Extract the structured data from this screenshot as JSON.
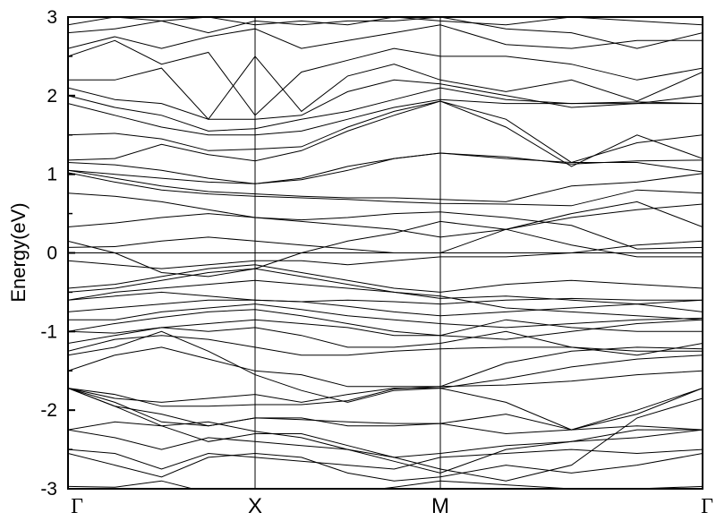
{
  "chart_data": {
    "type": "line",
    "title": "",
    "xlabel": "",
    "ylabel": "Energy(eV)",
    "ylim": [
      -3,
      3
    ],
    "yticks": [
      "3",
      "2",
      "1",
      "0",
      "-1",
      "-2",
      "-3"
    ],
    "ytick_values": [
      3,
      2,
      1,
      0,
      -1,
      -2,
      -3
    ],
    "y_minor_step": 0.5,
    "x_ticks": [
      "Γ",
      "X",
      "M",
      "Γ"
    ],
    "fermi_level": 0,
    "grid": false,
    "line_color": "#000000",
    "bands": [
      [
        -2.97,
        -2.98,
        -2.9,
        -3.05,
        -3.1,
        -3.1,
        -3.05,
        -2.98,
        -2.9,
        -2.95,
        -3.0,
        -3.0,
        -2.97
      ],
      [
        -2.55,
        -2.7,
        -2.85,
        -2.6,
        -2.55,
        -2.6,
        -2.8,
        -2.9,
        -2.85,
        -2.7,
        -2.8,
        -2.7,
        -2.55
      ],
      [
        -2.5,
        -2.55,
        -2.75,
        -2.55,
        -2.6,
        -2.65,
        -2.7,
        -2.75,
        -2.6,
        -2.55,
        -2.5,
        -2.55,
        -2.5
      ],
      [
        -2.25,
        -2.35,
        -2.5,
        -2.35,
        -2.4,
        -2.45,
        -2.5,
        -2.65,
        -2.8,
        -2.5,
        -2.4,
        -2.35,
        -2.25
      ],
      [
        -2.25,
        -2.15,
        -2.2,
        -2.15,
        -2.27,
        -2.35,
        -2.5,
        -2.6,
        -2.55,
        -2.45,
        -2.4,
        -2.25,
        -2.25
      ],
      [
        -1.72,
        -1.9,
        -2.15,
        -2.2,
        -2.1,
        -2.12,
        -2.15,
        -2.17,
        -2.17,
        -2.3,
        -2.25,
        -2.0,
        -1.72
      ],
      [
        -1.72,
        -1.85,
        -1.9,
        -1.85,
        -1.8,
        -1.9,
        -1.8,
        -1.72,
        -1.72,
        -1.9,
        -2.25,
        -2.05,
        -1.72
      ],
      [
        -1.72,
        -1.95,
        -2.05,
        -2.2,
        -2.1,
        -2.1,
        -2.2,
        -2.2,
        -2.17,
        -2.05,
        -2.25,
        -2.2,
        -2.25
      ],
      [
        -1.72,
        -1.8,
        -1.95,
        -1.95,
        -1.93,
        -1.93,
        -1.88,
        -1.73,
        -1.7,
        -1.68,
        -1.63,
        -1.55,
        -1.5
      ],
      [
        -1.72,
        -1.95,
        -2.2,
        -2.4,
        -2.3,
        -2.3,
        -2.45,
        -2.6,
        -2.75,
        -2.9,
        -2.7,
        -2.1,
        -1.85
      ],
      [
        -1.5,
        -1.3,
        -1.2,
        -1.35,
        -1.5,
        -1.55,
        -1.7,
        -1.7,
        -1.7,
        -1.4,
        -1.25,
        -1.2,
        -1.22
      ],
      [
        -1.3,
        -1.2,
        -1.0,
        -1.25,
        -1.55,
        -1.75,
        -1.9,
        -1.75,
        -1.72,
        -1.6,
        -1.45,
        -1.35,
        -1.3
      ],
      [
        -1.25,
        -1.1,
        -1.05,
        -1.1,
        -1.2,
        -1.3,
        -1.3,
        -1.25,
        -1.22,
        -1.2,
        -1.2,
        -1.25,
        -1.25
      ],
      [
        -1.15,
        -1.05,
        -0.95,
        -1.0,
        -0.95,
        -1.05,
        -1.2,
        -1.2,
        -1.15,
        -1.0,
        -1.2,
        -1.3,
        -1.15
      ],
      [
        -1.0,
        -1.02,
        -0.95,
        -0.9,
        -0.85,
        -0.9,
        -0.95,
        -1.05,
        -1.05,
        -0.85,
        -0.95,
        -1.0,
        -1.0
      ],
      [
        -1.0,
        -0.9,
        -0.82,
        -0.75,
        -0.72,
        -0.8,
        -0.9,
        -1.0,
        -1.05,
        -1.1,
        -1.0,
        -0.9,
        -0.85
      ],
      [
        -0.85,
        -0.85,
        -0.75,
        -0.7,
        -0.65,
        -0.72,
        -0.8,
        -0.85,
        -0.9,
        -0.95,
        -0.9,
        -0.85,
        -0.83
      ],
      [
        -0.75,
        -0.7,
        -0.65,
        -0.6,
        -0.6,
        -0.62,
        -0.68,
        -0.75,
        -0.8,
        -0.75,
        -0.7,
        -0.65,
        -0.75
      ],
      [
        -0.6,
        -0.55,
        -0.5,
        -0.55,
        -0.6,
        -0.62,
        -0.6,
        -0.62,
        -0.65,
        -0.6,
        -0.58,
        -0.6,
        -0.6
      ],
      [
        -0.6,
        -0.5,
        -0.45,
        -0.4,
        -0.35,
        -0.4,
        -0.45,
        -0.5,
        -0.58,
        -0.55,
        -0.6,
        -0.65,
        -0.6
      ],
      [
        -0.5,
        -0.45,
        -0.35,
        -0.25,
        -0.2,
        -0.3,
        -0.4,
        -0.5,
        -0.55,
        -0.7,
        -0.75,
        -0.8,
        -0.85
      ],
      [
        -0.45,
        -0.4,
        -0.3,
        -0.2,
        -0.15,
        -0.25,
        -0.35,
        -0.45,
        -0.5,
        -0.4,
        -0.35,
        -0.4,
        -0.45
      ],
      [
        -0.1,
        -0.15,
        -0.2,
        -0.15,
        -0.1,
        -0.1,
        -0.15,
        -0.1,
        -0.05,
        -0.05,
        0.0,
        0.1,
        0.15
      ],
      [
        0.15,
        0.0,
        -0.25,
        -0.3,
        -0.2,
        0.0,
        0.15,
        0.25,
        0.4,
        0.3,
        0.1,
        -0.05,
        -0.05
      ],
      [
        0.07,
        0.08,
        0.15,
        0.2,
        0.15,
        0.1,
        0.05,
        0.0,
        0.0,
        0.3,
        0.45,
        0.55,
        0.62
      ],
      [
        0.33,
        0.38,
        0.45,
        0.5,
        0.45,
        0.42,
        0.45,
        0.5,
        0.52,
        0.45,
        0.35,
        0.05,
        0.07
      ],
      [
        0.76,
        0.72,
        0.65,
        0.55,
        0.45,
        0.4,
        0.35,
        0.3,
        0.2,
        0.3,
        0.5,
        0.65,
        0.33
      ],
      [
        1.02,
        0.9,
        0.8,
        0.75,
        0.72,
        0.7,
        0.68,
        0.65,
        0.63,
        0.62,
        0.6,
        0.8,
        0.76
      ],
      [
        1.05,
        0.95,
        0.85,
        0.78,
        0.75,
        0.72,
        0.7,
        0.7,
        0.68,
        0.65,
        0.85,
        0.9,
        1.01
      ],
      [
        1.05,
        1.0,
        0.95,
        0.9,
        0.88,
        0.95,
        1.1,
        1.2,
        1.27,
        1.2,
        1.15,
        1.15,
        1.03
      ],
      [
        1.15,
        1.12,
        1.05,
        0.95,
        0.88,
        0.93,
        1.05,
        1.2,
        1.27,
        1.22,
        1.13,
        1.17,
        1.18
      ],
      [
        1.18,
        1.2,
        1.38,
        1.25,
        1.17,
        1.3,
        1.55,
        1.75,
        1.93,
        1.6,
        1.1,
        1.5,
        1.2
      ],
      [
        1.5,
        1.52,
        1.45,
        1.3,
        1.32,
        1.35,
        1.6,
        1.8,
        1.93,
        1.7,
        1.15,
        1.4,
        1.5
      ],
      [
        1.9,
        1.75,
        1.6,
        1.5,
        1.5,
        1.55,
        1.7,
        1.85,
        1.95,
        1.9,
        1.9,
        1.9,
        1.9
      ],
      [
        2.0,
        1.85,
        1.75,
        1.55,
        1.58,
        1.7,
        1.8,
        1.95,
        2.1,
        1.95,
        1.9,
        1.92,
        1.9
      ],
      [
        2.1,
        1.95,
        1.9,
        1.7,
        1.7,
        1.75,
        2.05,
        2.2,
        2.15,
        2.0,
        1.85,
        1.9,
        2.0
      ],
      [
        2.2,
        2.2,
        2.35,
        1.7,
        2.5,
        1.8,
        2.25,
        2.4,
        2.2,
        2.05,
        2.2,
        1.93,
        2.3
      ],
      [
        2.5,
        2.7,
        2.4,
        2.55,
        1.75,
        2.3,
        2.45,
        2.6,
        2.5,
        2.5,
        2.4,
        2.2,
        2.35
      ],
      [
        2.6,
        2.75,
        2.6,
        2.75,
        2.85,
        2.6,
        2.7,
        2.8,
        2.9,
        2.65,
        2.6,
        2.7,
        2.7
      ],
      [
        2.8,
        2.85,
        2.95,
        2.8,
        2.95,
        2.9,
        2.95,
        2.95,
        3.0,
        2.85,
        2.8,
        2.6,
        2.8
      ],
      [
        2.9,
        3.0,
        2.95,
        3.0,
        2.9,
        2.95,
        2.9,
        3.0,
        2.95,
        2.9,
        3.0,
        2.95,
        2.9
      ]
    ]
  }
}
